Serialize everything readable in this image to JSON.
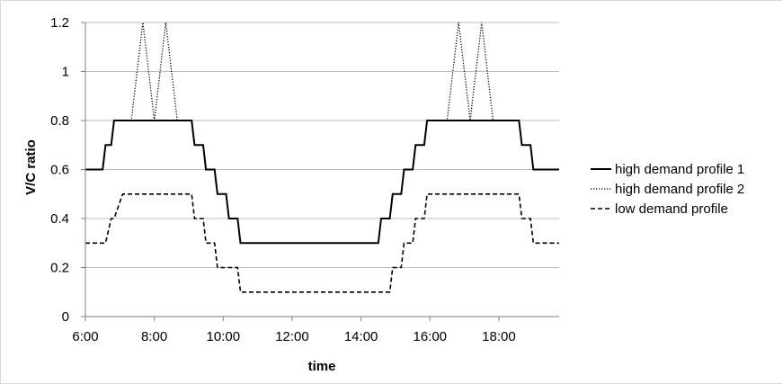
{
  "chart_data": {
    "type": "line",
    "title": "",
    "xlabel": "time",
    "ylabel": "V/C ratio",
    "xlim": [
      "6:00",
      "19:45"
    ],
    "ylim": [
      0,
      1.2
    ],
    "y_ticks": [
      "0",
      "0.2",
      "0.4",
      "0.6",
      "0.8",
      "1",
      "1.2"
    ],
    "x_ticks": [
      "6:00",
      "8:00",
      "10:00",
      "12:00",
      "14:00",
      "16:00",
      "18:00"
    ],
    "grid": "horizontal",
    "legend_position": "right",
    "series": [
      {
        "name": "high demand profile 1",
        "style": "solid",
        "color": "#000000",
        "x": [
          "6:00",
          "6:30",
          "6:35",
          "6:45",
          "6:50",
          "7:05",
          "7:10",
          "9:05",
          "9:10",
          "9:25",
          "9:30",
          "9:45",
          "9:50",
          "10:05",
          "10:10",
          "10:25",
          "10:30",
          "10:45",
          "10:50",
          "11:05",
          "11:10",
          "14:30",
          "14:35",
          "14:50",
          "14:55",
          "15:10",
          "15:15",
          "15:30",
          "15:35",
          "15:50",
          "15:55",
          "16:10",
          "16:15",
          "16:30",
          "16:35",
          "18:35",
          "18:40",
          "18:55",
          "19:00",
          "19:15",
          "19:20",
          "19:45"
        ],
        "values": [
          0.6,
          0.6,
          0.7,
          0.7,
          0.8,
          0.8,
          0.8,
          0.8,
          0.7,
          0.7,
          0.6,
          0.6,
          0.5,
          0.5,
          0.4,
          0.4,
          0.3,
          0.3,
          0.3,
          0.3,
          0.3,
          0.3,
          0.4,
          0.4,
          0.5,
          0.5,
          0.6,
          0.6,
          0.7,
          0.7,
          0.8,
          0.8,
          0.8,
          0.8,
          0.8,
          0.8,
          0.7,
          0.7,
          0.6,
          0.6,
          0.6,
          0.6
        ]
      },
      {
        "name": "high demand profile 2",
        "style": "dotted",
        "color": "#000000",
        "x": [
          "6:00",
          "6:30",
          "6:35",
          "6:45",
          "6:50",
          "7:05",
          "7:20",
          "7:40",
          "8:00",
          "8:20",
          "8:40",
          "9:05",
          "9:10",
          "9:25",
          "9:30",
          "9:45",
          "9:50",
          "10:05",
          "10:10",
          "10:25",
          "10:30",
          "10:45",
          "11:10",
          "14:30",
          "14:35",
          "14:50",
          "14:55",
          "15:10",
          "15:15",
          "15:30",
          "15:35",
          "15:50",
          "15:55",
          "16:10",
          "16:30",
          "16:50",
          "17:10",
          "17:30",
          "17:50",
          "18:10",
          "18:35",
          "18:40",
          "18:55",
          "19:00",
          "19:15",
          "19:20",
          "19:45"
        ],
        "values": [
          0.6,
          0.6,
          0.7,
          0.7,
          0.8,
          0.8,
          0.8,
          1.2,
          0.8,
          1.2,
          0.8,
          0.8,
          0.7,
          0.7,
          0.6,
          0.6,
          0.5,
          0.5,
          0.4,
          0.4,
          0.3,
          0.3,
          0.3,
          0.3,
          0.4,
          0.4,
          0.5,
          0.5,
          0.6,
          0.6,
          0.7,
          0.7,
          0.8,
          0.8,
          0.8,
          1.2,
          0.8,
          1.2,
          0.8,
          0.8,
          0.8,
          0.7,
          0.7,
          0.6,
          0.6,
          0.6,
          0.6
        ]
      },
      {
        "name": "low demand profile",
        "style": "dashed",
        "color": "#000000",
        "x": [
          "6:00",
          "6:30",
          "6:35",
          "6:45",
          "6:50",
          "7:05",
          "7:10",
          "9:05",
          "9:10",
          "9:25",
          "9:30",
          "9:45",
          "9:50",
          "10:05",
          "10:10",
          "10:25",
          "10:30",
          "10:45",
          "10:50",
          "14:50",
          "14:55",
          "15:10",
          "15:15",
          "15:30",
          "15:35",
          "15:50",
          "15:55",
          "16:10",
          "16:15",
          "16:30",
          "16:35",
          "18:35",
          "18:40",
          "18:55",
          "19:00",
          "19:15",
          "19:20",
          "19:45"
        ],
        "values": [
          0.3,
          0.3,
          0.3,
          0.4,
          0.4,
          0.5,
          0.5,
          0.5,
          0.4,
          0.4,
          0.3,
          0.3,
          0.2,
          0.2,
          0.2,
          0.2,
          0.1,
          0.1,
          0.1,
          0.1,
          0.2,
          0.2,
          0.3,
          0.3,
          0.4,
          0.4,
          0.5,
          0.5,
          0.5,
          0.5,
          0.5,
          0.5,
          0.4,
          0.4,
          0.3,
          0.3,
          0.3,
          0.3
        ]
      }
    ]
  }
}
